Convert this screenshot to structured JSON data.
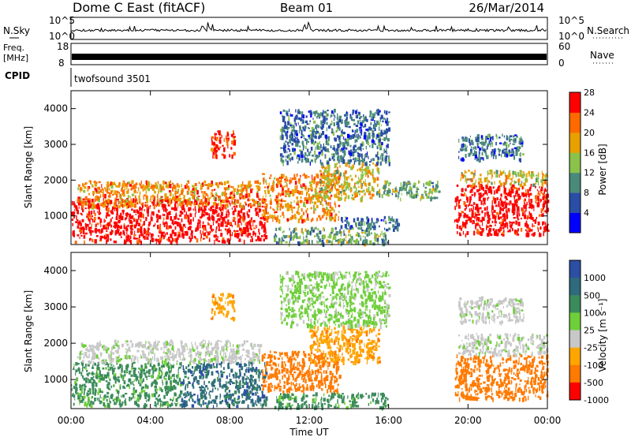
{
  "header": {
    "title": "Dome C East (fitACF)",
    "beam": "Beam 01",
    "date": "26/Mar/2014"
  },
  "top_panels": {
    "nsky_label": "N.Sky",
    "nsky_ticks": [
      "10^5",
      "10^0"
    ],
    "nsearch_label": "N.Search",
    "nsearch_ticks": [
      "10^5",
      "10^0"
    ],
    "freq_label": "Freq.",
    "freq_unit": "[MHz]",
    "freq_ticks": [
      "18",
      "8"
    ],
    "nave_label": "Nave",
    "nave_ticks": [
      "60",
      "0"
    ],
    "cpid_label": "CPID",
    "cpid_text": "twofsound 3501"
  },
  "chart_data": [
    {
      "type": "heatmap",
      "name": "power",
      "ylabel": "Slant Range [km]",
      "y_ticks": [
        "1000",
        "2000",
        "3000",
        "4000"
      ],
      "ylim": [
        200,
        4500
      ],
      "colorbar_label": "Power [dB]",
      "colorbar_ticks": [
        "4",
        "8",
        "12",
        "16",
        "20",
        "24",
        "28"
      ],
      "colorbar_colors": [
        "#0000ff",
        "#2a4ea6",
        "#4a8a7a",
        "#8bc34a",
        "#e8a000",
        "#ff6a00",
        "#ff0000"
      ],
      "regions": [
        {
          "t0": 0.0,
          "t1": 9.8,
          "r0": 300,
          "r1": 1500,
          "level": 28
        },
        {
          "t0": 0.3,
          "t1": 9.5,
          "r0": 1300,
          "r1": 2000,
          "level": 20
        },
        {
          "t0": 7.0,
          "t1": 8.2,
          "r0": 2700,
          "r1": 3400,
          "level": 24
        },
        {
          "t0": 9.6,
          "t1": 13.5,
          "r0": 900,
          "r1": 2200,
          "level": 20
        },
        {
          "t0": 10.2,
          "t1": 16.0,
          "r0": 250,
          "r1": 700,
          "level": 12
        },
        {
          "t0": 12.5,
          "t1": 15.5,
          "r0": 1500,
          "r1": 2500,
          "level": 16
        },
        {
          "t0": 13.5,
          "t1": 16.5,
          "r0": 600,
          "r1": 1000,
          "level": 8
        },
        {
          "t0": 15.5,
          "t1": 18.5,
          "r0": 1500,
          "r1": 2000,
          "level": 12
        },
        {
          "t0": 10.5,
          "t1": 16.0,
          "r0": 2500,
          "r1": 4000,
          "level": 8
        },
        {
          "t0": 19.3,
          "t1": 24.0,
          "r0": 500,
          "r1": 1900,
          "level": 28
        },
        {
          "t0": 19.5,
          "t1": 24.0,
          "r0": 1900,
          "r1": 2300,
          "level": 16
        },
        {
          "t0": 19.5,
          "t1": 22.8,
          "r0": 2600,
          "r1": 3300,
          "level": 8
        }
      ]
    },
    {
      "type": "heatmap",
      "name": "velocity",
      "xlabel": "Time UT",
      "x_ticks": [
        "00:00",
        "04:00",
        "08:00",
        "12:00",
        "16:00",
        "20:00",
        "00:00"
      ],
      "xlim": [
        0,
        24
      ],
      "ylabel": "Slant Range [km]",
      "y_ticks": [
        "1000",
        "2000",
        "3000",
        "4000"
      ],
      "ylim": [
        200,
        4500
      ],
      "colorbar_label": "Velocity [m s⁻¹]",
      "colorbar_ticks": [
        "1000",
        "500",
        "100",
        "25",
        "-25",
        "-100",
        "-500",
        "-1000"
      ],
      "colorbar_colors": [
        "#2c4fa3",
        "#2e6b7c",
        "#3b8b5b",
        "#6fcf3a",
        "#c8c8c8",
        "#ffa500",
        "#ff7a00",
        "#ff0000"
      ],
      "regions": [
        {
          "t0": 0.0,
          "t1": 5.5,
          "r0": 300,
          "r1": 1500,
          "v": 100
        },
        {
          "t0": 0.3,
          "t1": 9.5,
          "r0": 1500,
          "r1": 2100,
          "v": 0
        },
        {
          "t0": 5.5,
          "t1": 9.8,
          "r0": 300,
          "r1": 1500,
          "v": 500
        },
        {
          "t0": 9.6,
          "t1": 13.5,
          "r0": 700,
          "r1": 1800,
          "v": -250
        },
        {
          "t0": 12.0,
          "t1": 15.5,
          "r0": 1500,
          "r1": 2500,
          "v": -100
        },
        {
          "t0": 10.2,
          "t1": 16.0,
          "r0": 250,
          "r1": 650,
          "v": 100
        },
        {
          "t0": 7.0,
          "t1": 8.2,
          "r0": 2700,
          "r1": 3400,
          "v": -100
        },
        {
          "t0": 10.5,
          "t1": 16.0,
          "r0": 2500,
          "r1": 4000,
          "v": 25
        },
        {
          "t0": 19.3,
          "t1": 24.0,
          "r0": 500,
          "r1": 1700,
          "v": -250
        },
        {
          "t0": 19.5,
          "t1": 24.0,
          "r0": 1700,
          "r1": 2300,
          "v": 0
        },
        {
          "t0": 19.5,
          "t1": 22.8,
          "r0": 2600,
          "r1": 3300,
          "v": 0
        }
      ]
    }
  ]
}
